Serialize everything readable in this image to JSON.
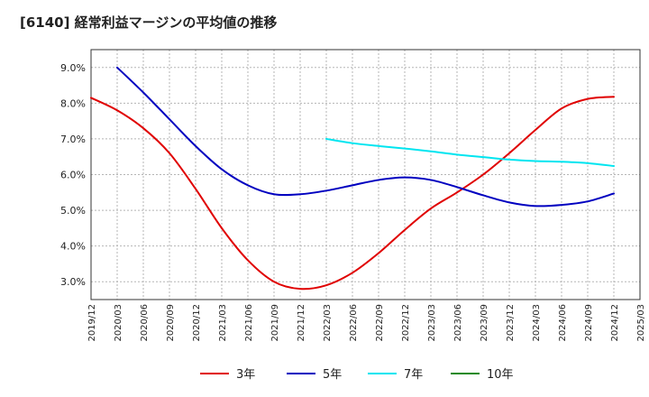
{
  "chart_data": {
    "type": "line",
    "title": "[6140]  経常利益マージンの平均値の推移",
    "xlabel": "",
    "ylabel": "",
    "ylim": [
      2.5,
      9.5
    ],
    "yticks": [
      "3.0%",
      "4.0%",
      "5.0%",
      "6.0%",
      "7.0%",
      "8.0%",
      "9.0%"
    ],
    "yticks_values": [
      3.0,
      4.0,
      5.0,
      6.0,
      7.0,
      8.0,
      9.0
    ],
    "x_range": [
      "2019/12",
      "2025/03"
    ],
    "x_ticks": [
      "2019/12",
      "2020/03",
      "2020/06",
      "2020/09",
      "2020/12",
      "2021/03",
      "2021/06",
      "2021/09",
      "2021/12",
      "2022/03",
      "2022/06",
      "2022/09",
      "2022/12",
      "2023/03",
      "2023/06",
      "2023/09",
      "2023/12",
      "2024/03",
      "2024/06",
      "2024/09",
      "2024/12",
      "2025/03"
    ],
    "grid": true,
    "legend_position": "bottom",
    "series": [
      {
        "name": "3年",
        "color": "#e00000",
        "x": [
          "2019/12",
          "2020/03",
          "2020/06",
          "2020/09",
          "2020/12",
          "2021/03",
          "2021/06",
          "2021/09",
          "2021/12",
          "2022/03",
          "2022/06",
          "2022/09",
          "2022/12",
          "2023/03",
          "2023/06",
          "2023/09",
          "2023/12",
          "2024/03",
          "2024/06",
          "2024/09",
          "2024/12"
        ],
        "values": [
          8.15,
          7.8,
          7.3,
          6.6,
          5.6,
          4.5,
          3.6,
          3.0,
          2.8,
          2.9,
          3.25,
          3.8,
          4.45,
          5.05,
          5.5,
          6.0,
          6.6,
          7.25,
          7.85,
          8.12,
          8.18
        ]
      },
      {
        "name": "5年",
        "color": "#0000c0",
        "x": [
          "2020/03",
          "2020/06",
          "2020/09",
          "2020/12",
          "2021/03",
          "2021/06",
          "2021/09",
          "2021/12",
          "2022/03",
          "2022/06",
          "2022/09",
          "2022/12",
          "2023/03",
          "2023/06",
          "2023/09",
          "2023/12",
          "2024/03",
          "2024/06",
          "2024/09",
          "2024/12"
        ],
        "values": [
          9.0,
          8.3,
          7.55,
          6.8,
          6.15,
          5.7,
          5.45,
          5.45,
          5.55,
          5.7,
          5.85,
          5.92,
          5.85,
          5.65,
          5.42,
          5.22,
          5.12,
          5.15,
          5.25,
          5.47
        ]
      },
      {
        "name": "7年",
        "color": "#00e5f0",
        "x": [
          "2022/03",
          "2022/06",
          "2022/09",
          "2022/12",
          "2023/03",
          "2023/06",
          "2023/09",
          "2023/12",
          "2024/03",
          "2024/06",
          "2024/09",
          "2024/12"
        ],
        "values": [
          7.0,
          6.88,
          6.8,
          6.73,
          6.65,
          6.56,
          6.49,
          6.42,
          6.38,
          6.36,
          6.32,
          6.24
        ]
      },
      {
        "name": "10年",
        "color": "#1a8a1a",
        "x": [],
        "values": []
      }
    ]
  }
}
